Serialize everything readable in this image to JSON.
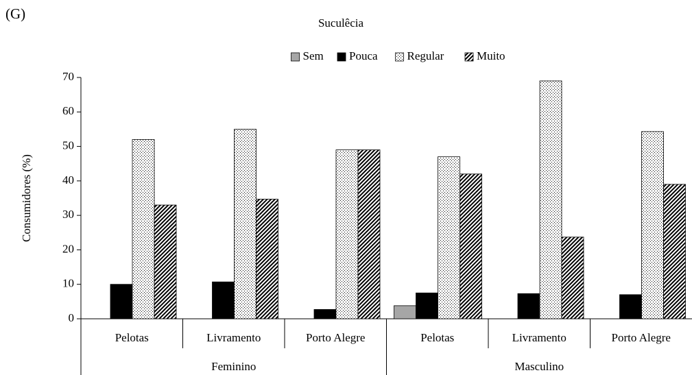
{
  "chart_data": {
    "type": "bar",
    "panel_label": "(G)",
    "title": "Suculêcia",
    "ylabel": "Consumidores (%)",
    "categories": [
      "Pelotas",
      "Livramento",
      "Porto Alegre",
      "Pelotas",
      "Livramento",
      "Porto Alegre"
    ],
    "groups": [
      "Feminino",
      "Masculino"
    ],
    "series": [
      {
        "name": "Sem",
        "color": "#a6a6a6",
        "pattern": "solid",
        "values": [
          0,
          0,
          0,
          3.8,
          0,
          0
        ]
      },
      {
        "name": "Pouca",
        "color": "#000000",
        "pattern": "solid",
        "values": [
          10,
          10.7,
          2.7,
          7.5,
          7.3,
          7
        ]
      },
      {
        "name": "Regular",
        "color": "#000000",
        "pattern": "dots",
        "values": [
          52,
          55,
          49,
          47,
          69,
          54.3
        ]
      },
      {
        "name": "Muito",
        "color": "#000000",
        "pattern": "hatch",
        "values": [
          33,
          34.7,
          49,
          42,
          23.7,
          39
        ]
      }
    ],
    "ylim": [
      0,
      70
    ],
    "yticks": [
      0,
      10,
      20,
      30,
      40,
      50,
      60,
      70
    ],
    "grid": false,
    "legend": "top"
  }
}
